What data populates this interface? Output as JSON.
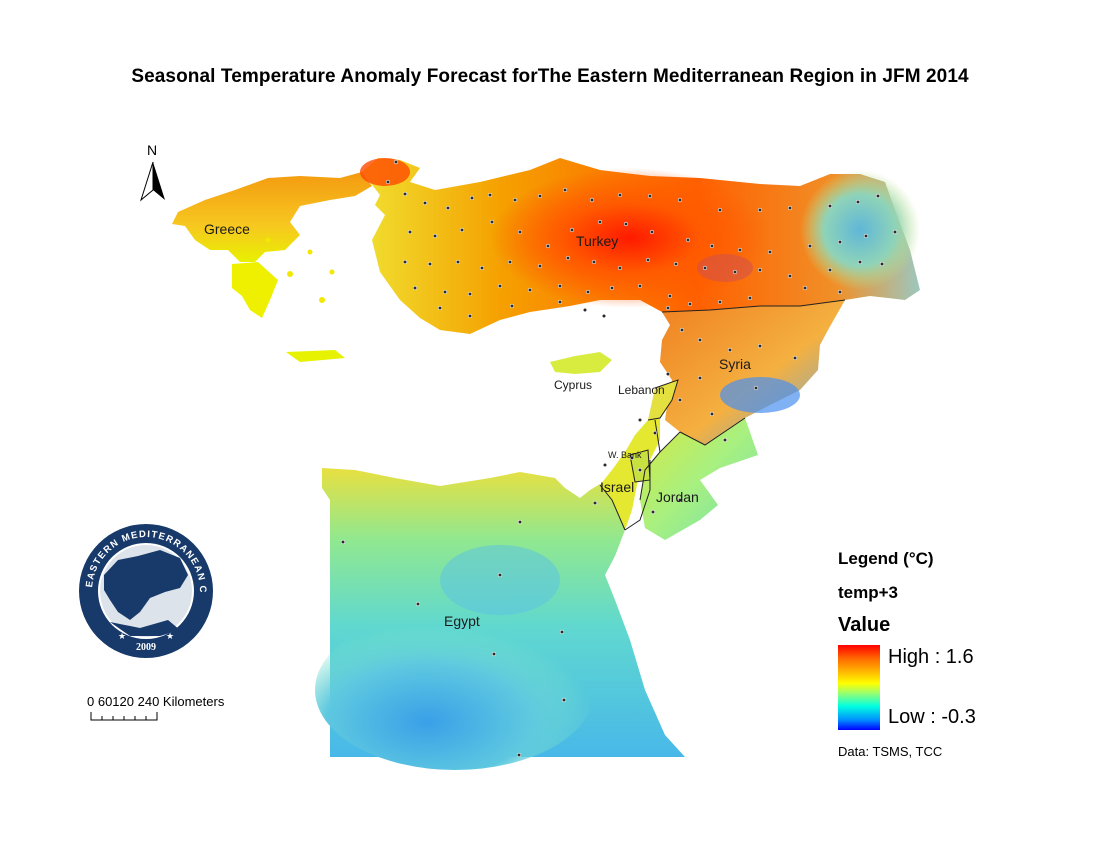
{
  "title": "Seasonal Temperature Anomaly Forecast forThe Eastern Mediterranean Region in JFM 2014",
  "north_arrow": {
    "label": "N",
    "icon": "north-arrow-icon"
  },
  "countries": {
    "greece": "Greece",
    "turkey": "Turkey",
    "syria": "Syria",
    "cyprus": "Cyprus",
    "lebanon": "Lebanon",
    "west_bank": "W. Bank",
    "israel": "Israel",
    "jordan": "Jordan",
    "egypt": "Egypt"
  },
  "logo": {
    "text": "EASTERN MEDITERRANEAN CLIMATE CENTRE",
    "year": "2009",
    "icon": "emcc-logo-icon",
    "colors": {
      "navy": "#173a6b",
      "white": "#ffffff"
    }
  },
  "scale_bar": {
    "labels": "0 60120   240 Kilometers",
    "units": "Kilometers",
    "ticks": [
      0,
      60,
      120,
      240
    ]
  },
  "legend": {
    "title": "Legend (°C)",
    "layer": "temp+3",
    "field": "Value",
    "high_label": "High : 1.6",
    "low_label": "Low : -0.3",
    "high_value": 1.6,
    "low_value": -0.3,
    "colors": [
      "#ff0000",
      "#ff6a00",
      "#ffc400",
      "#ffff00",
      "#8cff7a",
      "#00ffe0",
      "#0090ff",
      "#0000ff"
    ]
  },
  "data_source": "Data:  TSMS, TCC"
}
